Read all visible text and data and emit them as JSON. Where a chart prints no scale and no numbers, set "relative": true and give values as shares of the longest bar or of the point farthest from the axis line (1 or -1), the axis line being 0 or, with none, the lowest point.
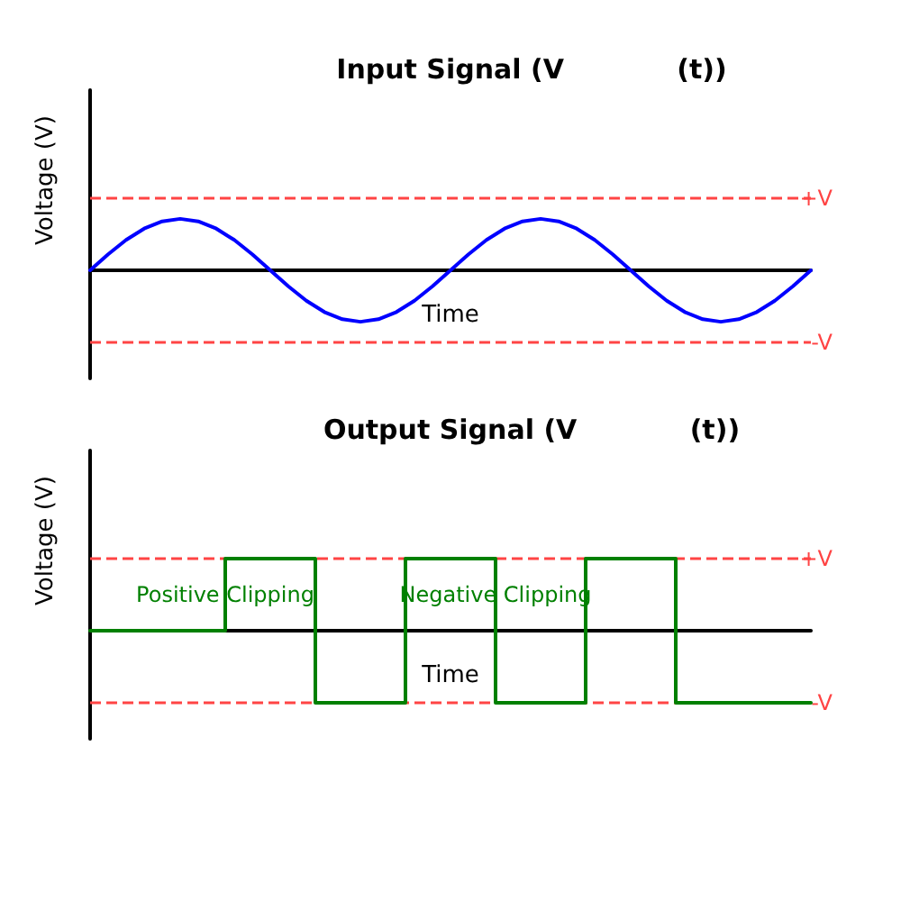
{
  "chart_data": [
    {
      "type": "line",
      "title": "Input Signal (V            (t))",
      "xlabel": "Time",
      "ylabel": "Voltage (V)",
      "relative": true,
      "marker": "none",
      "categories": [
        null,
        null,
        null,
        null,
        null,
        null,
        null,
        null,
        null,
        null,
        null,
        null,
        null,
        null,
        null,
        null,
        null,
        null,
        null,
        null,
        null,
        null,
        null,
        null,
        null,
        null,
        null,
        null,
        null,
        null,
        null,
        null,
        null,
        null,
        null,
        null,
        null,
        null,
        null,
        null,
        null
      ],
      "series": [
        {
          "color": "#0000ff",
          "values": [
            0,
            0.31,
            0.59,
            0.81,
            0.95,
            1,
            0.95,
            0.81,
            0.59,
            0.31,
            0,
            -0.31,
            -0.59,
            -0.81,
            -0.95,
            -1,
            -0.95,
            -0.81,
            -0.59,
            -0.31,
            0,
            0.31,
            0.59,
            0.81,
            0.95,
            1,
            0.95,
            0.81,
            0.59,
            0.31,
            0,
            -0.31,
            -0.59,
            -0.81,
            -0.95,
            -1,
            -0.95,
            -0.81,
            -0.59,
            -0.31,
            0
          ]
        }
      ],
      "ref_lines": [
        {
          "axis": "y",
          "value": 1.4,
          "label": "+V",
          "color": "#ff4444",
          "line_style": "dashed"
        },
        {
          "axis": "y",
          "value": -1.4,
          "label": "-V",
          "color": "#ff4444",
          "line_style": "dashed"
        }
      ]
    },
    {
      "type": "step",
      "title": "Output Signal (V            (t))",
      "xlabel": "Time",
      "ylabel": "Voltage (V)",
      "relative": true,
      "marker": "none",
      "categories": [
        null,
        null,
        null,
        null,
        null,
        null,
        null,
        null,
        null,
        null,
        null,
        null,
        null,
        null,
        null,
        null,
        null
      ],
      "series": [
        {
          "color": "#008000",
          "values": [
            0,
            0,
            0,
            1,
            1,
            -1,
            -1,
            1,
            1,
            -1,
            -1,
            1,
            1,
            -1,
            -1,
            -1,
            -1
          ]
        }
      ],
      "ref_lines": [
        {
          "axis": "y",
          "value": 1,
          "label": "+V",
          "color": "#ff4444",
          "line_style": "dashed"
        },
        {
          "axis": "y",
          "value": -1,
          "label": "-V",
          "color": "#ff4444",
          "line_style": "dashed"
        }
      ],
      "annotations": [
        {
          "text": "Positive Clipping",
          "y": 0.5
        },
        {
          "text": "Negative Clipping",
          "y": 0.5
        }
      ]
    }
  ]
}
